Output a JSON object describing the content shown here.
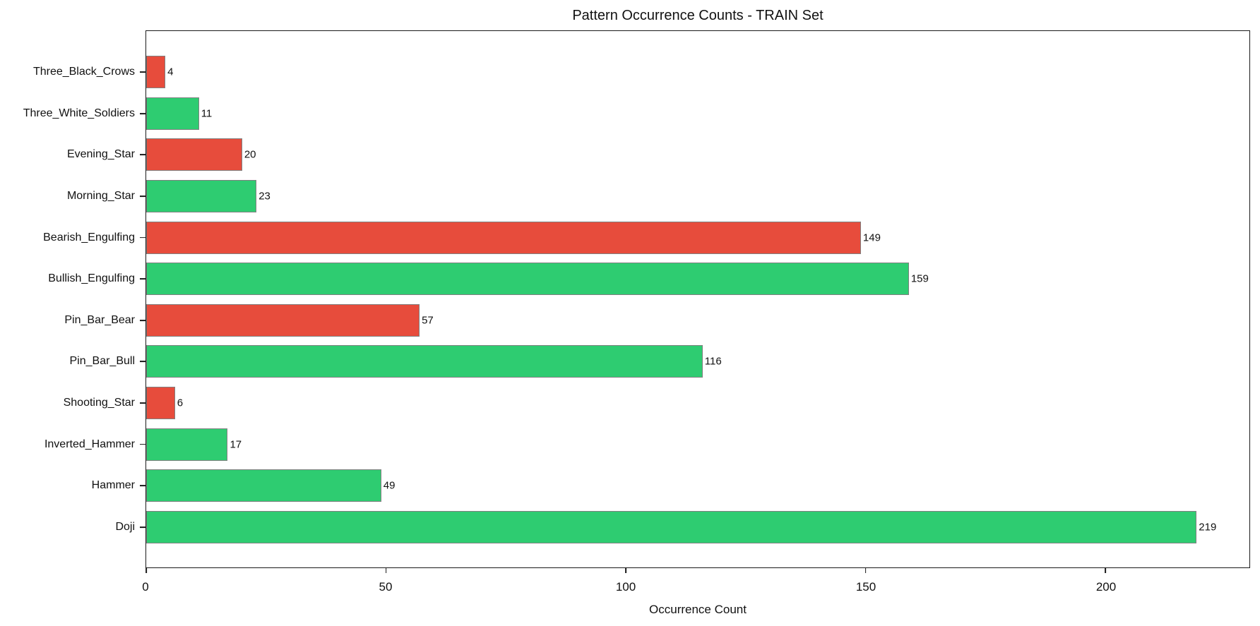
{
  "figure": {
    "title": "Pattern Occurrence Counts - TRAIN Set",
    "xlabel": "Occurrence Count"
  },
  "chart_data": {
    "type": "bar",
    "orientation": "horizontal",
    "title": "Pattern Occurrence Counts - TRAIN Set",
    "xlabel": "Occurrence Count",
    "ylabel": "",
    "categories_order": "top-to-bottom",
    "categories": [
      "Three_Black_Crows",
      "Three_White_Soldiers",
      "Evening_Star",
      "Morning_Star",
      "Bearish_Engulfing",
      "Bullish_Engulfing",
      "Pin_Bar_Bear",
      "Pin_Bar_Bull",
      "Shooting_Star",
      "Inverted_Hammer",
      "Hammer",
      "Doji"
    ],
    "values": [
      4,
      11,
      20,
      23,
      149,
      159,
      57,
      116,
      6,
      17,
      49,
      219
    ],
    "bar_colors": [
      "#e74c3c",
      "#2ecc71",
      "#e74c3c",
      "#2ecc71",
      "#e74c3c",
      "#2ecc71",
      "#e74c3c",
      "#2ecc71",
      "#e74c3c",
      "#2ecc71",
      "#2ecc71",
      "#2ecc71"
    ],
    "bar_edge_color": "#808080",
    "xticks": [
      0,
      50,
      100,
      150,
      200
    ],
    "xlim": [
      0,
      230
    ],
    "grid": false,
    "legend_position": "none",
    "colors": {
      "bearish_red": "#e74c3c",
      "bullish_green": "#2ecc71",
      "axis": "#1a1a1a",
      "background": "#ffffff"
    }
  }
}
